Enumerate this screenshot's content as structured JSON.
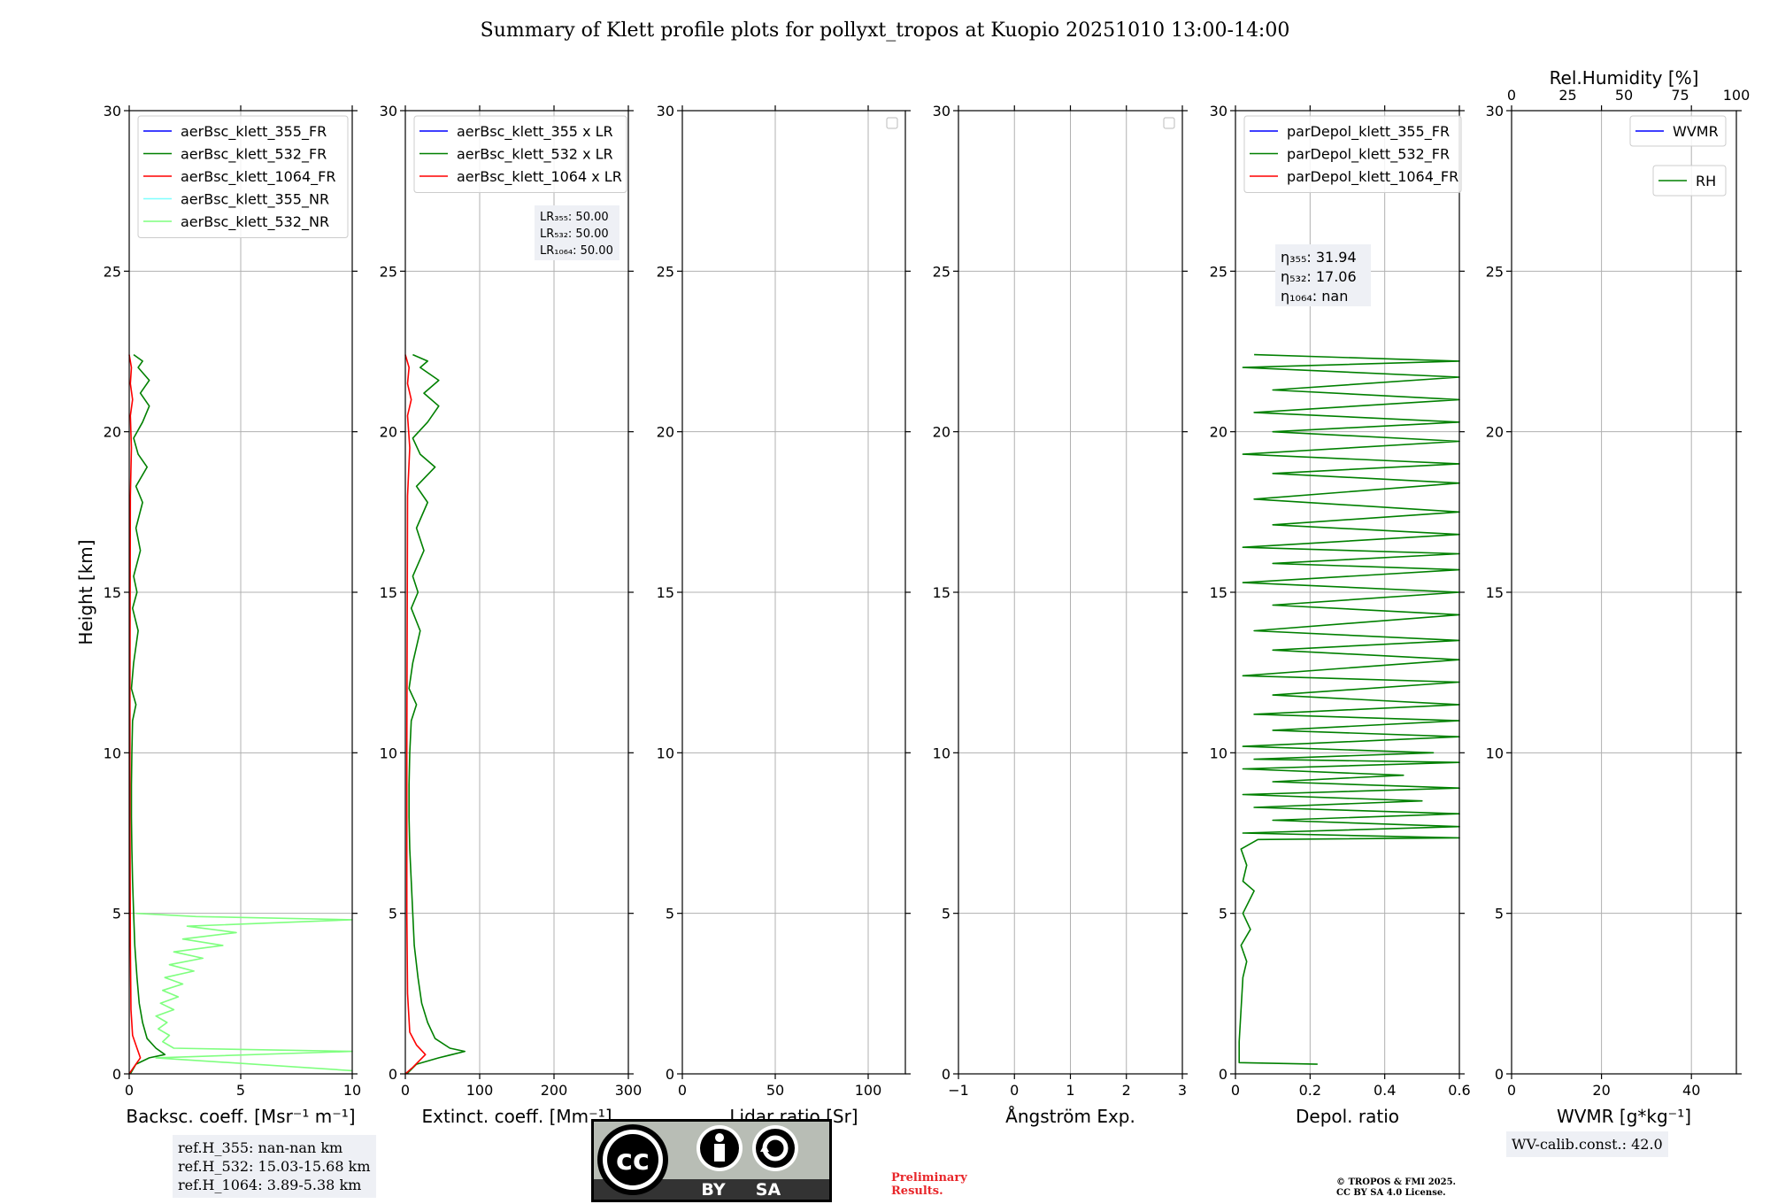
{
  "title": "Summary of Klett profile plots for pollyxt_tropos at Kuopio 20251010 13:00-14:00",
  "colors": {
    "blue": "#0000ff",
    "green": "#008000",
    "red": "#ff0000",
    "cyan": "#7fffff",
    "lightgreen": "#7fff7f",
    "grid": "#b0b0b0",
    "info_bg": "#eef0f5"
  },
  "chart_data": [
    {
      "type": "line",
      "id": "backscatter",
      "xlabel": "Backsc. coeff. [Msr⁻¹ m⁻¹]",
      "ylabel": "Height [km]",
      "xlim": [
        0,
        10
      ],
      "ylim": [
        0,
        30
      ],
      "xticks": [
        0,
        5,
        10
      ],
      "yticks": [
        0,
        5,
        10,
        15,
        20,
        25,
        30
      ],
      "grid": true,
      "legend": "top-left",
      "series": [
        {
          "name": "aerBsc_klett_355_FR",
          "color": "#0000ff",
          "points": []
        },
        {
          "name": "aerBsc_klett_532_FR",
          "color": "#008000",
          "points": [
            [
              0.05,
              0.0
            ],
            [
              0.3,
              0.3
            ],
            [
              0.9,
              0.5
            ],
            [
              1.6,
              0.6
            ],
            [
              1.2,
              0.8
            ],
            [
              0.8,
              1.1
            ],
            [
              0.6,
              1.6
            ],
            [
              0.45,
              2.2
            ],
            [
              0.35,
              3.0
            ],
            [
              0.25,
              4.0
            ],
            [
              0.2,
              5.0
            ],
            [
              0.15,
              6.0
            ],
            [
              0.12,
              7.0
            ],
            [
              0.1,
              8.0
            ],
            [
              0.1,
              9.0
            ],
            [
              0.12,
              10.0
            ],
            [
              0.15,
              11.0
            ],
            [
              0.3,
              11.5
            ],
            [
              0.1,
              12.0
            ],
            [
              0.2,
              12.8
            ],
            [
              0.4,
              13.8
            ],
            [
              0.15,
              14.5
            ],
            [
              0.35,
              15.0
            ],
            [
              0.2,
              15.5
            ],
            [
              0.5,
              16.3
            ],
            [
              0.3,
              17.0
            ],
            [
              0.6,
              17.8
            ],
            [
              0.3,
              18.3
            ],
            [
              0.8,
              18.9
            ],
            [
              0.4,
              19.3
            ],
            [
              0.2,
              19.8
            ],
            [
              0.6,
              20.3
            ],
            [
              0.9,
              20.8
            ],
            [
              0.5,
              21.2
            ],
            [
              0.9,
              21.6
            ],
            [
              0.4,
              22.0
            ],
            [
              0.6,
              22.2
            ],
            [
              0.2,
              22.4
            ]
          ]
        },
        {
          "name": "aerBsc_klett_1064_FR",
          "color": "#ff0000",
          "points": [
            [
              0.0,
              0.0
            ],
            [
              0.2,
              0.2
            ],
            [
              0.5,
              0.5
            ],
            [
              0.35,
              0.8
            ],
            [
              0.15,
              1.2
            ],
            [
              0.08,
              2.0
            ],
            [
              0.05,
              4.0
            ],
            [
              0.03,
              8.0
            ],
            [
              0.03,
              12.0
            ],
            [
              0.05,
              18.0
            ],
            [
              0.1,
              19.5
            ],
            [
              0.05,
              20.5
            ],
            [
              0.15,
              21.0
            ],
            [
              0.05,
              21.5
            ],
            [
              0.1,
              22.0
            ],
            [
              0.0,
              22.4
            ]
          ]
        },
        {
          "name": "aerBsc_klett_355_NR",
          "color": "#7fffff",
          "points": []
        },
        {
          "name": "aerBsc_klett_532_NR",
          "color": "#7fff7f",
          "points": [
            [
              10.0,
              0.1
            ],
            [
              1.2,
              0.5
            ],
            [
              10.0,
              0.7
            ],
            [
              2.0,
              0.8
            ],
            [
              1.5,
              1.0
            ],
            [
              1.8,
              1.2
            ],
            [
              1.3,
              1.4
            ],
            [
              1.7,
              1.6
            ],
            [
              1.2,
              1.8
            ],
            [
              2.0,
              2.0
            ],
            [
              1.4,
              2.2
            ],
            [
              2.2,
              2.4
            ],
            [
              1.5,
              2.6
            ],
            [
              2.4,
              2.8
            ],
            [
              1.6,
              3.0
            ],
            [
              2.9,
              3.2
            ],
            [
              1.8,
              3.4
            ],
            [
              3.3,
              3.6
            ],
            [
              2.0,
              3.8
            ],
            [
              4.2,
              4.0
            ],
            [
              2.4,
              4.2
            ],
            [
              4.8,
              4.4
            ],
            [
              2.6,
              4.6
            ],
            [
              10.0,
              4.8
            ],
            [
              3.0,
              4.9
            ],
            [
              0.3,
              5.0
            ]
          ]
        }
      ],
      "ref_info": [
        "ref.H_355: nan-nan km",
        "ref.H_532: 15.03-15.68 km",
        "ref.H_1064: 3.89-5.38 km"
      ]
    },
    {
      "type": "line",
      "id": "extinction",
      "xlabel": "Extinct. coeff. [Mm⁻¹]",
      "xlim": [
        0,
        300
      ],
      "ylim": [
        0,
        30
      ],
      "xticks": [
        0,
        100,
        200,
        300
      ],
      "yticks": [
        0,
        5,
        10,
        15,
        20,
        25,
        30
      ],
      "grid": true,
      "legend": "top-left",
      "series": [
        {
          "name": "aerBsc_klett_355 x LR",
          "color": "#0000ff",
          "points": []
        },
        {
          "name": "aerBsc_klett_532 x LR",
          "color": "#008000",
          "points": [
            [
              2,
              0.0
            ],
            [
              15,
              0.3
            ],
            [
              45,
              0.5
            ],
            [
              80,
              0.7
            ],
            [
              60,
              0.8
            ],
            [
              40,
              1.1
            ],
            [
              30,
              1.6
            ],
            [
              22,
              2.2
            ],
            [
              17,
              3.0
            ],
            [
              12,
              4.0
            ],
            [
              10,
              5.0
            ],
            [
              8,
              6.0
            ],
            [
              6,
              7.0
            ],
            [
              5,
              8.0
            ],
            [
              5,
              9.0
            ],
            [
              6,
              10.0
            ],
            [
              8,
              11.0
            ],
            [
              15,
              11.5
            ],
            [
              5,
              12.0
            ],
            [
              10,
              12.8
            ],
            [
              20,
              13.8
            ],
            [
              8,
              14.5
            ],
            [
              17,
              15.0
            ],
            [
              10,
              15.5
            ],
            [
              25,
              16.3
            ],
            [
              15,
              17.0
            ],
            [
              30,
              17.8
            ],
            [
              15,
              18.3
            ],
            [
              40,
              18.9
            ],
            [
              20,
              19.3
            ],
            [
              10,
              19.8
            ],
            [
              30,
              20.3
            ],
            [
              45,
              20.8
            ],
            [
              25,
              21.2
            ],
            [
              45,
              21.6
            ],
            [
              20,
              22.0
            ],
            [
              30,
              22.2
            ],
            [
              10,
              22.4
            ]
          ]
        },
        {
          "name": "aerBsc_klett_1064 x LR",
          "color": "#ff0000",
          "points": [
            [
              0,
              0.0
            ],
            [
              10,
              0.2
            ],
            [
              27,
              0.6
            ],
            [
              15,
              0.9
            ],
            [
              6,
              1.3
            ],
            [
              3,
              2.5
            ],
            [
              2,
              5.0
            ],
            [
              2,
              10.0
            ],
            [
              3,
              18.0
            ],
            [
              6,
              19.5
            ],
            [
              3,
              20.5
            ],
            [
              8,
              21.0
            ],
            [
              3,
              21.5
            ],
            [
              5,
              22.0
            ],
            [
              0,
              22.4
            ]
          ]
        }
      ],
      "lr_info": [
        "LR₃₅₅: 50.00",
        "LR₅₃₂: 50.00",
        "LR₁₀₆₄: 50.00"
      ]
    },
    {
      "type": "line",
      "id": "lidar_ratio",
      "xlabel": "Lidar ratio [Sr]",
      "xlim": [
        0,
        120
      ],
      "ylim": [
        0,
        30
      ],
      "xticks": [
        0,
        50,
        100
      ],
      "yticks": [
        0,
        5,
        10,
        15,
        20,
        25,
        30
      ],
      "grid": true,
      "legend": "top-right (empty)",
      "series": []
    },
    {
      "type": "line",
      "id": "angstrom",
      "xlabel": "Ångström Exp.",
      "xlim": [
        -1,
        3
      ],
      "ylim": [
        0,
        30
      ],
      "xticks": [
        -1,
        0,
        1,
        2,
        3
      ],
      "yticks": [
        0,
        5,
        10,
        15,
        20,
        25,
        30
      ],
      "grid": true,
      "legend": "top-right (empty)",
      "series": []
    },
    {
      "type": "line",
      "id": "depol",
      "xlabel": "Depol. ratio",
      "xlim": [
        0.0,
        0.6
      ],
      "ylim": [
        0,
        30
      ],
      "xticks": [
        0.0,
        0.2,
        0.4,
        0.6
      ],
      "yticks": [
        0,
        5,
        10,
        15,
        20,
        25,
        30
      ],
      "grid": true,
      "legend": "top-left",
      "series": [
        {
          "name": "parDepol_klett_355_FR",
          "color": "#0000ff",
          "points": []
        },
        {
          "name": "parDepol_klett_532_FR",
          "color": "#008000",
          "points": [
            [
              0.22,
              0.3
            ],
            [
              0.01,
              0.35
            ],
            [
              0.01,
              1.0
            ],
            [
              0.015,
              2.0
            ],
            [
              0.02,
              3.0
            ],
            [
              0.03,
              3.5
            ],
            [
              0.015,
              4.0
            ],
            [
              0.04,
              4.5
            ],
            [
              0.02,
              5.0
            ],
            [
              0.05,
              5.7
            ],
            [
              0.02,
              6.0
            ],
            [
              0.03,
              6.5
            ],
            [
              0.015,
              7.0
            ],
            [
              0.06,
              7.3
            ],
            [
              0.6,
              7.35
            ],
            [
              0.02,
              7.5
            ],
            [
              0.6,
              7.7
            ],
            [
              0.1,
              7.9
            ],
            [
              0.6,
              8.1
            ],
            [
              0.05,
              8.3
            ],
            [
              0.5,
              8.5
            ],
            [
              0.02,
              8.7
            ],
            [
              0.6,
              8.9
            ],
            [
              0.1,
              9.1
            ],
            [
              0.45,
              9.3
            ],
            [
              0.02,
              9.5
            ],
            [
              0.6,
              9.7
            ],
            [
              0.05,
              9.8
            ],
            [
              0.53,
              10.0
            ],
            [
              0.02,
              10.2
            ],
            [
              0.6,
              10.5
            ],
            [
              0.1,
              10.7
            ],
            [
              0.6,
              11.0
            ],
            [
              0.05,
              11.2
            ],
            [
              0.6,
              11.5
            ],
            [
              0.1,
              11.8
            ],
            [
              0.6,
              12.2
            ],
            [
              0.02,
              12.4
            ],
            [
              0.6,
              12.9
            ],
            [
              0.1,
              13.2
            ],
            [
              0.6,
              13.5
            ],
            [
              0.05,
              13.8
            ],
            [
              0.6,
              14.3
            ],
            [
              0.1,
              14.6
            ],
            [
              0.6,
              15.0
            ],
            [
              0.02,
              15.3
            ],
            [
              0.6,
              15.7
            ],
            [
              0.1,
              15.9
            ],
            [
              0.6,
              16.2
            ],
            [
              0.02,
              16.4
            ],
            [
              0.6,
              16.8
            ],
            [
              0.1,
              17.1
            ],
            [
              0.6,
              17.5
            ],
            [
              0.05,
              17.9
            ],
            [
              0.6,
              18.4
            ],
            [
              0.1,
              18.7
            ],
            [
              0.6,
              19.0
            ],
            [
              0.02,
              19.3
            ],
            [
              0.6,
              19.7
            ],
            [
              0.1,
              20.0
            ],
            [
              0.6,
              20.3
            ],
            [
              0.05,
              20.6
            ],
            [
              0.6,
              21.0
            ],
            [
              0.1,
              21.3
            ],
            [
              0.6,
              21.7
            ],
            [
              0.02,
              22.0
            ],
            [
              0.6,
              22.2
            ],
            [
              0.05,
              22.4
            ]
          ]
        },
        {
          "name": "parDepol_klett_1064_FR",
          "color": "#ff0000",
          "points": []
        }
      ],
      "eta_info": [
        "η₃₅₅: 31.94",
        "η₅₃₂: 17.06",
        "η₁₀₆₄: nan"
      ]
    },
    {
      "type": "line",
      "id": "wvmr",
      "xlabel": "WVMR [g*kg⁻¹]",
      "xlim": [
        0,
        50
      ],
      "ylim": [
        0,
        30
      ],
      "xticks": [
        0,
        20,
        40
      ],
      "yticks": [
        0,
        5,
        10,
        15,
        20,
        25,
        30
      ],
      "grid": true,
      "top_axis": {
        "label": "Rel.Humidity [%]",
        "lim": [
          0,
          100
        ],
        "ticks": [
          0,
          25,
          50,
          75,
          100
        ]
      },
      "legend": "top-right",
      "series": [
        {
          "name": "WVMR",
          "color": "#0000ff",
          "points": []
        },
        {
          "name": "RH",
          "color": "#008000",
          "points": []
        }
      ],
      "calib_info": "WV-calib.const.: 42.0"
    }
  ],
  "footer": {
    "cc_badge": {
      "cc": "cc",
      "by": "BY",
      "sa": "SA"
    },
    "preliminary": [
      "Preliminary",
      "Results."
    ],
    "copyright": [
      "© TROPOS & FMI 2025.",
      "CC BY SA 4.0 License."
    ]
  }
}
